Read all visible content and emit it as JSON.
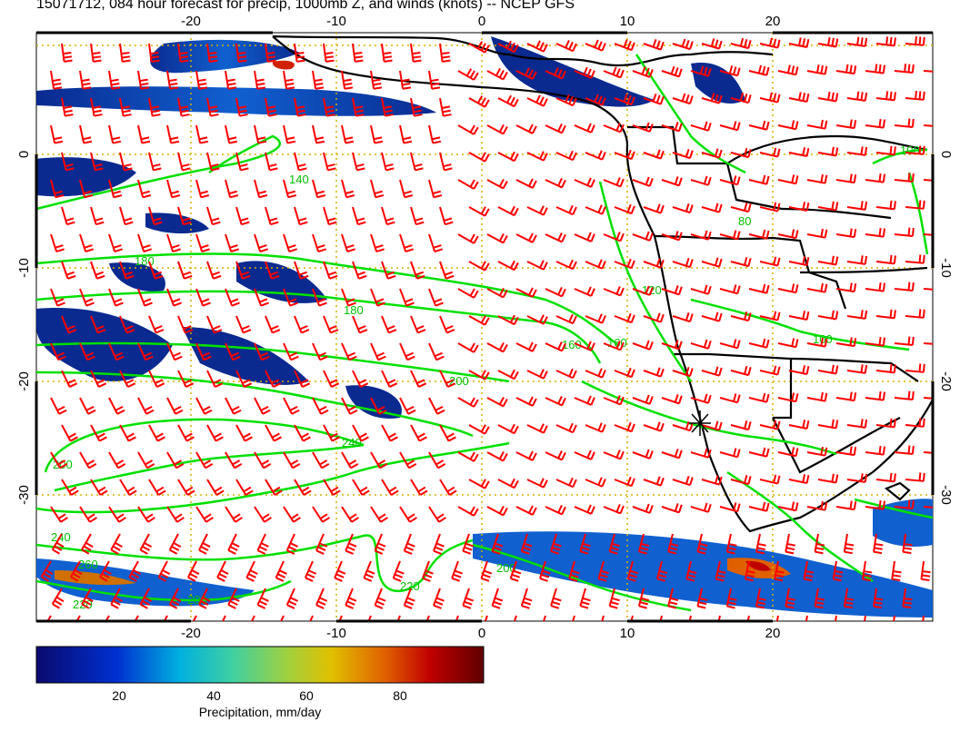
{
  "title": "15071712, 084 hour forecast for precip, 1000mb Z, and winds (knots) -- NCEP GFS",
  "map": {
    "lon_ticks": [
      "-20",
      "-10",
      "0",
      "10",
      "20"
    ],
    "lat_ticks": [
      "0",
      "-10",
      "-20",
      "-30"
    ],
    "lon_range": [
      -30,
      30
    ],
    "lat_range": [
      -40,
      10
    ],
    "contour_labels": [
      "140",
      "180",
      "180",
      "160",
      "200",
      "240",
      "200",
      "240",
      "220",
      "260",
      "200",
      "220",
      "200",
      "160",
      "120",
      "100",
      "80",
      "100"
    ],
    "colors": {
      "barbs": "#ff0000",
      "contours": "#00e000",
      "grid": "#d4b000",
      "coast": "#000000"
    }
  },
  "colorbar": {
    "label": "Precipitation, mm/day",
    "ticks": [
      "20",
      "40",
      "60",
      "80"
    ],
    "range": [
      0,
      100
    ]
  }
}
